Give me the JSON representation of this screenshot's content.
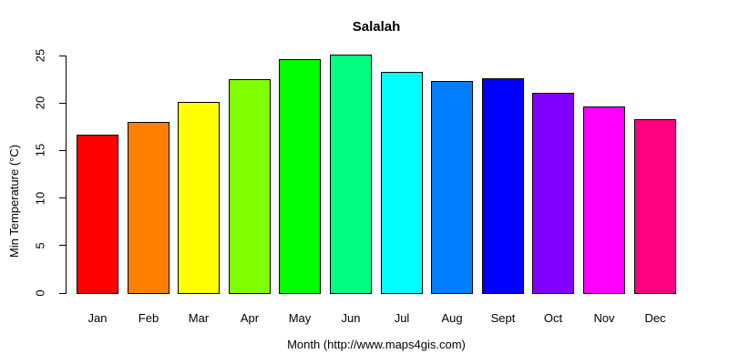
{
  "title": "Salalah",
  "chart_data": {
    "type": "bar",
    "title": "Salalah",
    "xlabel": "Month (http://www.maps4gis.com)",
    "ylabel": "Min Temperature (°C)",
    "categories": [
      "Jan",
      "Feb",
      "Mar",
      "Apr",
      "May",
      "Jun",
      "Jul",
      "Aug",
      "Sept",
      "Oct",
      "Nov",
      "Dec"
    ],
    "values": [
      16.7,
      18.0,
      20.1,
      22.5,
      24.6,
      25.1,
      23.3,
      22.3,
      22.6,
      21.1,
      19.6,
      18.3
    ],
    "bar_colors": [
      "#FF0000",
      "#FF8000",
      "#FFFF00",
      "#80FF00",
      "#00FF00",
      "#00FF80",
      "#00FFFF",
      "#0080FF",
      "#0000FF",
      "#8000FF",
      "#FF00FF",
      "#FF0080"
    ],
    "bar_border_color": "#000000",
    "ylim": [
      0,
      25
    ],
    "yticks": [
      0,
      5,
      10,
      15,
      20,
      25
    ],
    "grid": false,
    "legend": "none",
    "background": "#FFFFFF",
    "text_color": "#000000"
  }
}
